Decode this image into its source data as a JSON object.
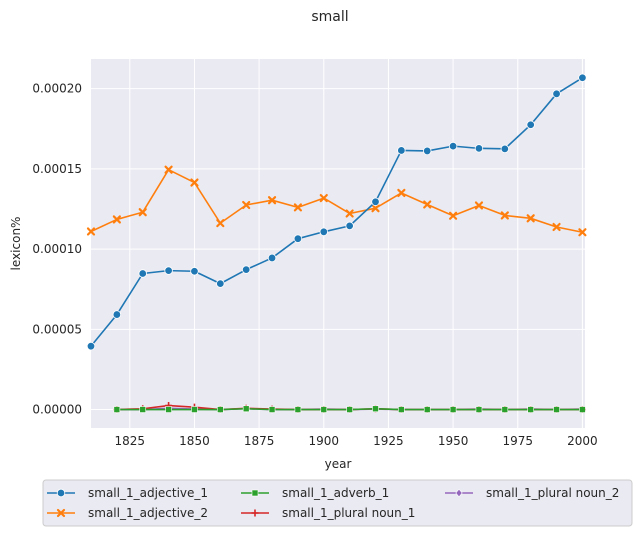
{
  "chart_data": {
    "type": "line",
    "title": "small",
    "xlabel": "year",
    "ylabel": "lexicon%",
    "xlim": [
      1810,
      2001
    ],
    "ylim": [
      -1.15e-05,
      0.0002185
    ],
    "xticks": [
      1825,
      1850,
      1875,
      1900,
      1925,
      1950,
      1975,
      2000
    ],
    "xtick_labels": [
      "1825",
      "1850",
      "1875",
      "1900",
      "1925",
      "1950",
      "1975",
      "2000"
    ],
    "yticks": [
      0,
      5e-05,
      0.0001,
      0.00015,
      0.0002
    ],
    "ytick_labels": [
      "0.00000",
      "0.00005",
      "0.00010",
      "0.00015",
      "0.00020"
    ],
    "grid": true,
    "legend_position": "bottom-center",
    "series": [
      {
        "name": "small_1_adjective_1",
        "color": "#1f77b4",
        "marker": "circle",
        "x": [
          1810,
          1820,
          1830,
          1840,
          1850,
          1860,
          1870,
          1880,
          1890,
          1900,
          1910,
          1920,
          1930,
          1940,
          1950,
          1960,
          1970,
          1980,
          1990,
          2000
        ],
        "y": [
          3.95e-05,
          5.92e-05,
          8.48e-05,
          8.66e-05,
          8.62e-05,
          7.85e-05,
          8.72e-05,
          9.45e-05,
          0.0001065,
          0.0001108,
          0.0001145,
          0.0001295,
          0.0001615,
          0.0001612,
          0.0001642,
          0.0001628,
          0.0001625,
          0.0001775,
          0.0001968,
          0.0002068
        ]
      },
      {
        "name": "small_1_adjective_2",
        "color": "#ff7f0e",
        "marker": "x",
        "x": [
          1810,
          1820,
          1830,
          1840,
          1850,
          1860,
          1870,
          1880,
          1890,
          1900,
          1910,
          1920,
          1930,
          1940,
          1950,
          1960,
          1970,
          1980,
          1990,
          2000
        ],
        "y": [
          0.000111,
          0.0001185,
          0.000123,
          0.0001495,
          0.0001415,
          0.0001162,
          0.0001275,
          0.0001305,
          0.000126,
          0.0001318,
          0.0001222,
          0.0001255,
          0.000135,
          0.0001278,
          0.0001208,
          0.0001272,
          0.000121,
          0.0001192,
          0.0001138,
          0.0001105
        ]
      },
      {
        "name": "small_1_adverb_1",
        "color": "#2ca02c",
        "marker": "square",
        "x": [
          1820,
          1830,
          1840,
          1850,
          1860,
          1870,
          1880,
          1890,
          1900,
          1910,
          1920,
          1930,
          1940,
          1950,
          1960,
          1970,
          1980,
          1990,
          2000
        ],
        "y": [
          0,
          0,
          0,
          0,
          0,
          5e-07,
          0,
          0,
          0,
          0,
          5e-07,
          0,
          0,
          0,
          0,
          0,
          0,
          0,
          0
        ]
      },
      {
        "name": "small_1_plural noun_1",
        "color": "#d62728",
        "marker": "plus",
        "x": [
          1820,
          1830,
          1840,
          1850,
          1860,
          1870,
          1880,
          1890,
          1900,
          1910,
          1920,
          1930,
          1940,
          1950,
          1960,
          1970,
          1980,
          1990,
          2000
        ],
        "y": [
          0,
          5e-07,
          2.5e-06,
          1.5e-06,
          0,
          8e-07,
          3e-07,
          0,
          0,
          0,
          5e-07,
          0,
          0,
          0,
          0,
          0,
          0,
          0,
          0
        ]
      },
      {
        "name": "small_1_plural noun_2",
        "color": "#9467bd",
        "marker": "diamond",
        "x": [
          1820,
          1830,
          1840,
          1850,
          1860,
          1870,
          1880,
          1890,
          1900,
          1910,
          1920,
          1930,
          1940,
          1950,
          1960,
          1970,
          1980,
          1990,
          2000
        ],
        "y": [
          0,
          0,
          8e-07,
          3e-07,
          0,
          5e-07,
          0,
          0,
          3e-07,
          0,
          3e-07,
          0,
          0,
          0,
          3e-07,
          0,
          3e-07,
          0,
          3e-07
        ]
      }
    ]
  }
}
